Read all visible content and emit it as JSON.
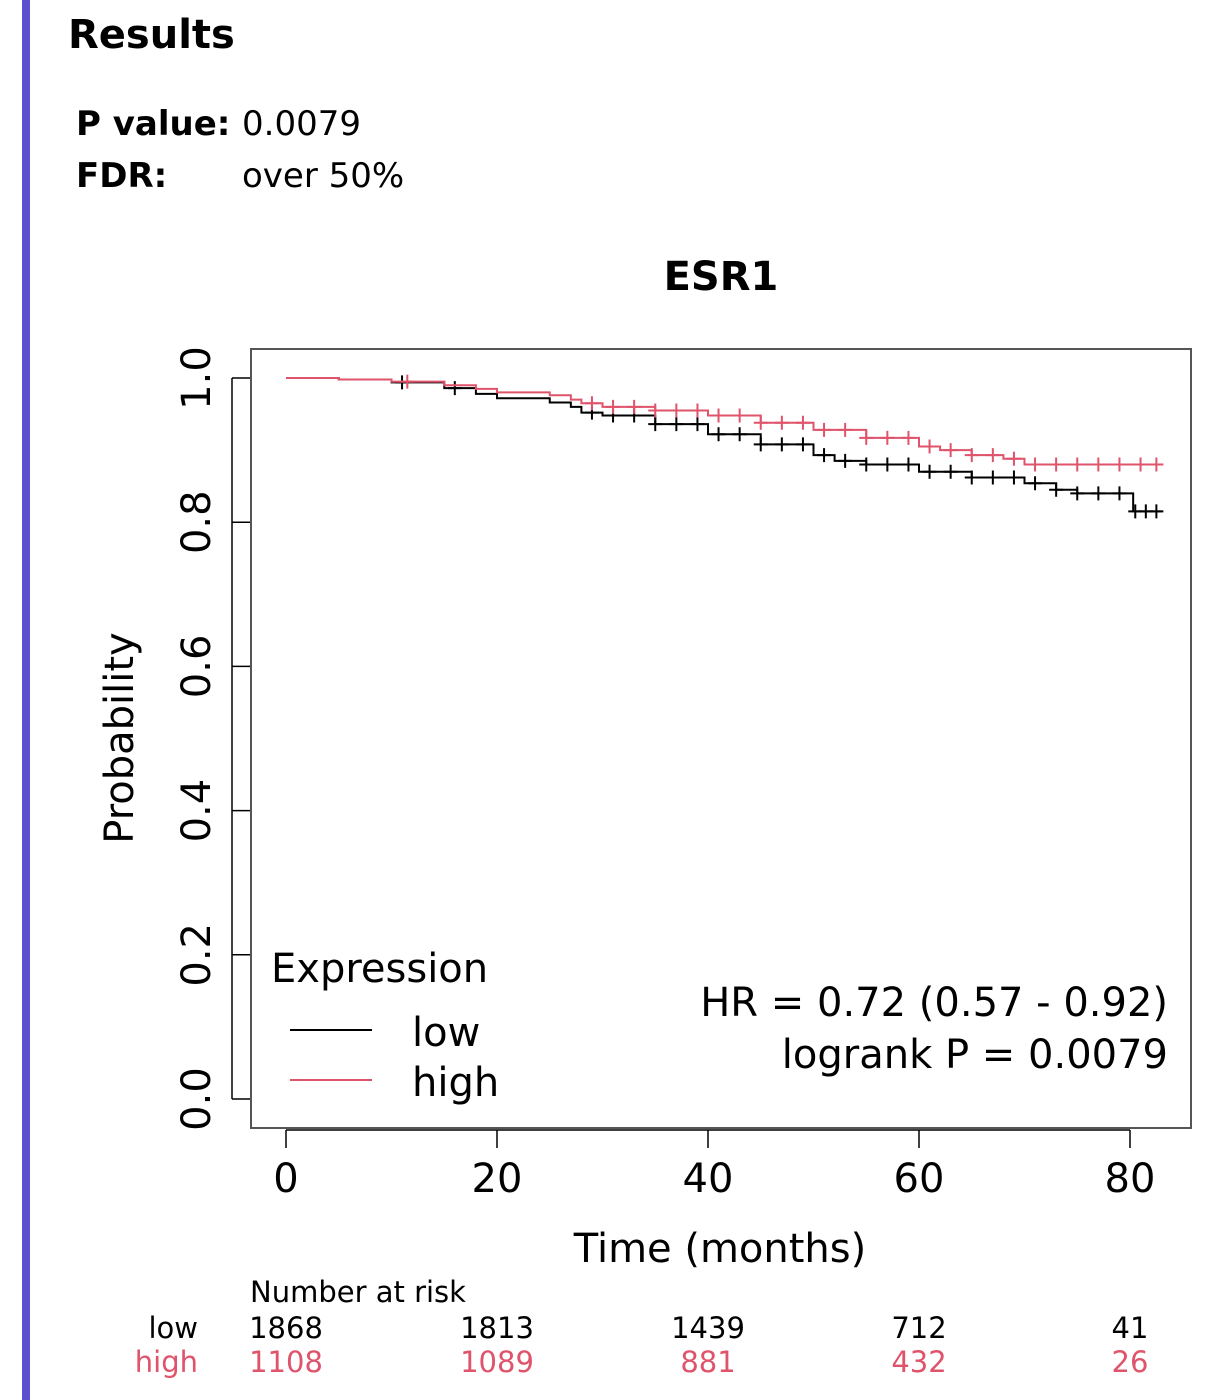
{
  "results": {
    "title": "Results",
    "p_value_label": "P value:",
    "p_value": "0.0079",
    "fdr_label": "FDR:",
    "fdr": "over 50%"
  },
  "colors": {
    "accent_bar": "#5a4fcf",
    "low": "#000000",
    "high": "#df536b"
  },
  "chart_data": {
    "type": "line",
    "subtype": "kaplan-meier",
    "title": "ESR1",
    "xlabel": "Time (months)",
    "ylabel": "Probability",
    "xlim": [
      0,
      83
    ],
    "ylim": [
      0,
      1
    ],
    "x_ticks": [
      "0",
      "20",
      "40",
      "60",
      "80"
    ],
    "y_ticks": [
      "0.0",
      "0.2",
      "0.4",
      "0.6",
      "0.8",
      "1.0"
    ],
    "legend": {
      "title": "Expression",
      "position": "bottom-left",
      "entries": [
        {
          "label": "low",
          "color": "#000000"
        },
        {
          "label": "high",
          "color": "#df536b"
        }
      ]
    },
    "annotations": [
      "HR = 0.72 (0.57 - 0.92)",
      "logrank P = 0.0079"
    ],
    "series": [
      {
        "name": "low",
        "color": "#000000",
        "x": [
          0,
          5,
          10,
          15,
          18,
          20,
          25,
          27,
          28,
          30,
          35,
          40,
          45,
          50,
          52,
          55,
          60,
          65,
          70,
          73,
          75,
          80,
          80.3,
          83
        ],
        "y": [
          1.0,
          0.998,
          0.994,
          0.986,
          0.978,
          0.972,
          0.966,
          0.96,
          0.952,
          0.948,
          0.936,
          0.922,
          0.908,
          0.893,
          0.885,
          0.88,
          0.87,
          0.862,
          0.854,
          0.845,
          0.84,
          0.84,
          0.815,
          0.815
        ],
        "censor_x": [
          11,
          16,
          29,
          31,
          33,
          35,
          37,
          39,
          41,
          43,
          45,
          47,
          49,
          51,
          53,
          55,
          57,
          59,
          61,
          63,
          65,
          67,
          69,
          71,
          73,
          75,
          77,
          79,
          80.5,
          81.5,
          82.5
        ]
      },
      {
        "name": "high",
        "color": "#df536b",
        "x": [
          0,
          5,
          10,
          15,
          18,
          20,
          25,
          27,
          28,
          30,
          35,
          40,
          45,
          50,
          55,
          60,
          62,
          65,
          68,
          70,
          75,
          80,
          83
        ],
        "y": [
          1.0,
          0.998,
          0.995,
          0.99,
          0.985,
          0.98,
          0.976,
          0.97,
          0.965,
          0.96,
          0.955,
          0.948,
          0.938,
          0.928,
          0.917,
          0.905,
          0.9,
          0.893,
          0.888,
          0.88,
          0.88,
          0.88,
          0.88
        ],
        "censor_x": [
          11.5,
          29,
          31,
          33,
          35,
          37,
          39,
          41,
          43,
          45,
          47,
          49,
          51,
          53,
          55,
          57,
          59,
          61,
          63,
          65,
          67,
          69,
          71,
          73,
          75,
          77,
          79,
          81,
          82.5
        ]
      }
    ],
    "risk_table": {
      "title": "Number at risk",
      "rows": [
        {
          "label": "low",
          "color": "#000000",
          "values": [
            "1868",
            "1813",
            "1439",
            "712",
            "41"
          ]
        },
        {
          "label": "high",
          "color": "#df536b",
          "values": [
            "1108",
            "1089",
            "881",
            "432",
            "26"
          ]
        }
      ]
    }
  }
}
